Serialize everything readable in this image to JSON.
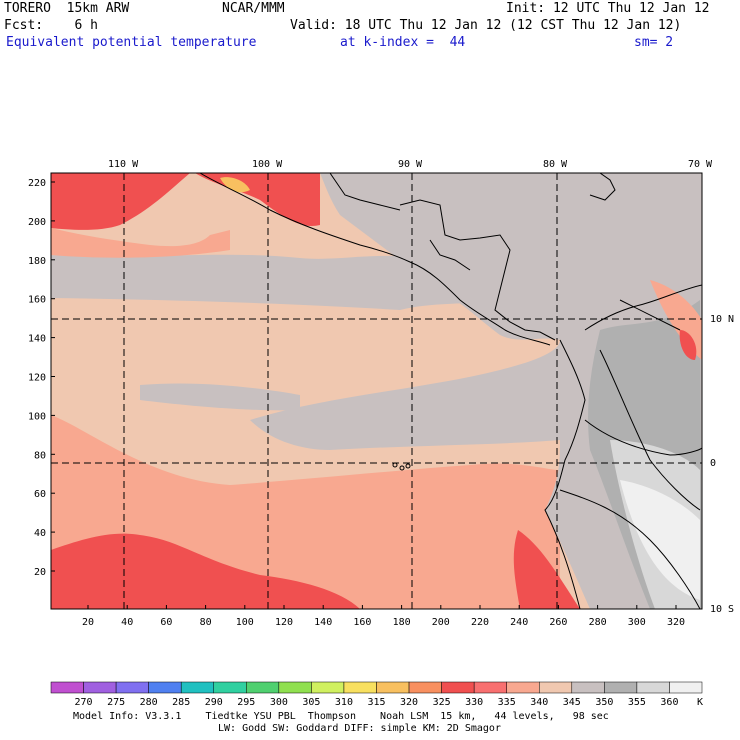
{
  "header": {
    "model": "TORERO  15km ARW",
    "org": "NCAR/MMM",
    "init": "Init: 12 UTC Thu 12 Jan 12",
    "fcst": "Fcst:    6 h",
    "valid": "Valid: 18 UTC Thu 12 Jan 12 (12 CST Thu 12 Jan 12)",
    "field": "Equivalent potential temperature",
    "level": "at k-index =  44",
    "smooth": "sm= 2"
  },
  "top_lon_labels": [
    "110 W",
    "100 W",
    "90 W",
    "80 W",
    "70 W"
  ],
  "right_lat_labels": [
    "10 N",
    "0",
    "10 S"
  ],
  "left_y_ticks": [
    "220",
    "200",
    "180",
    "160",
    "140",
    "120",
    "100",
    "80",
    "60",
    "40",
    "20"
  ],
  "bottom_x_ticks": [
    "20",
    "40",
    "60",
    "80",
    "100",
    "120",
    "140",
    "160",
    "180",
    "200",
    "220",
    "240",
    "260",
    "280",
    "300",
    "320"
  ],
  "colorbar": {
    "unit": "K",
    "labels": [
      "270",
      "275",
      "280",
      "285",
      "290",
      "295",
      "300",
      "305",
      "310",
      "315",
      "320",
      "325",
      "330",
      "335",
      "340",
      "345",
      "350",
      "355",
      "360"
    ],
    "colors": [
      "#c050d0",
      "#a060e0",
      "#8070f0",
      "#5080f0",
      "#20c0c0",
      "#30d0a0",
      "#50d070",
      "#90e050",
      "#d0f060",
      "#f8e060",
      "#f8c060",
      "#f89060",
      "#f05050",
      "#f87070",
      "#f8a890",
      "#f0c8b0",
      "#c8c0c0",
      "#b0b0b0",
      "#d8d8d8",
      "#f0f0f0"
    ]
  },
  "footer": {
    "line1": "Model Info: V3.3.1    Tiedtke YSU PBL  Thompson    Noah LSM  15 km,   44 levels,   98 sec",
    "line2": "LW: Godd SW: Goddard DIFF: simple KM: 2D Smagor"
  }
}
